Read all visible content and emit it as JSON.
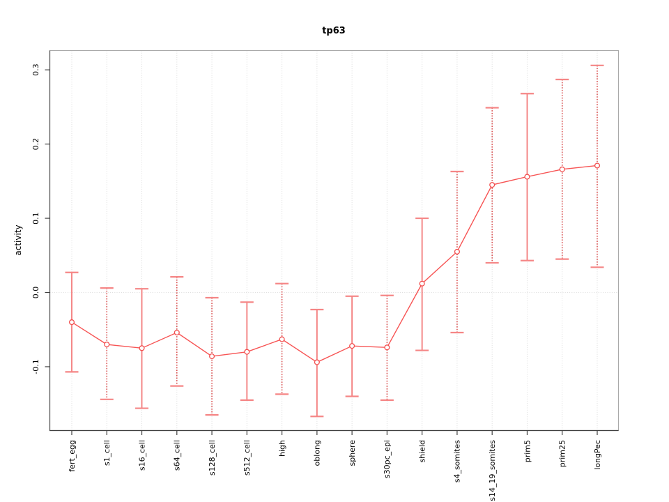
{
  "chart_data": {
    "type": "line",
    "title": "tp63",
    "xlabel": "",
    "ylabel": "activity",
    "categories": [
      "fert_egg",
      "s1_cell",
      "s16_cell",
      "s64_cell",
      "s128_cell",
      "s512_cell",
      "high",
      "oblong",
      "sphere",
      "s30pc_epi",
      "shield",
      "s4_somites",
      "s14_19_somites",
      "prim5",
      "prim25",
      "longPec"
    ],
    "series": [
      {
        "name": "tp63",
        "values": [
          -0.04,
          -0.07,
          -0.075,
          -0.054,
          -0.086,
          -0.08,
          -0.063,
          -0.094,
          -0.072,
          -0.074,
          0.012,
          0.055,
          0.145,
          0.156,
          0.166,
          0.171
        ],
        "lower": [
          -0.107,
          -0.144,
          -0.156,
          -0.126,
          -0.165,
          -0.145,
          -0.137,
          -0.167,
          -0.14,
          -0.145,
          -0.078,
          -0.054,
          0.04,
          0.043,
          0.045,
          0.034
        ],
        "upper": [
          0.027,
          0.006,
          0.005,
          0.021,
          -0.007,
          -0.013,
          0.012,
          -0.023,
          -0.005,
          -0.004,
          0.1,
          0.163,
          0.249,
          0.268,
          0.287,
          0.306
        ]
      }
    ],
    "error_bar_styles": [
      "solid",
      "dotted",
      "solid",
      "dotted",
      "dotted",
      "solid",
      "dotted",
      "solid",
      "solid",
      "dotted",
      "solid",
      "dotted",
      "dotted",
      "solid",
      "dotted",
      "dotted"
    ],
    "yticks": [
      -0.1,
      0.0,
      0.1,
      0.2,
      0.3
    ],
    "ytick_labels": [
      "-0.1",
      "0.0",
      "0.1",
      "0.2",
      "0.3"
    ],
    "ylim": [
      -0.186,
      0.326
    ],
    "zero_line": 0.0,
    "grid": {
      "vertical_dotted_per_category": true,
      "horizontal_dotted_at_zero": true
    },
    "legend_position": "none",
    "marker": "open-circle",
    "colors": {
      "series_line": "#f75454",
      "marker_stroke": "#f24f4f",
      "error_bar_solid": "#f37b7b",
      "error_bar_dotted": "#d94545",
      "error_cap": "#f58686",
      "grid_dotted": "#dcdcdc",
      "axis_dark": "#3f3f3f",
      "box_light": "#a9a9a9",
      "text": "#000000",
      "background": "#ffffff"
    }
  }
}
